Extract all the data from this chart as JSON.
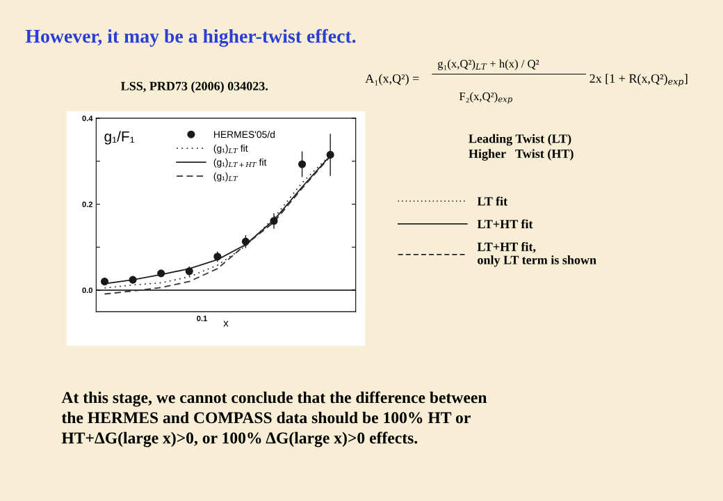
{
  "chart_data": {
    "type": "line",
    "title": "However, it may be a higher-twist effect.",
    "xlabel": "x",
    "categories": [
      null,
      null,
      null,
      null,
      null,
      null,
      null,
      null,
      null
    ],
    "ylim": [
      -0.05,
      0.4
    ],
    "yticks": [
      {
        "value": 0,
        "label": "0.0"
      },
      {
        "value": 0.1,
        "label": null
      },
      {
        "value": 0.2,
        "label": "0.2"
      },
      {
        "value": 0.3,
        "label": null
      },
      {
        "value": 0.4,
        "label": "0.4"
      }
    ],
    "grid": false,
    "legend": "top",
    "ref_lines": [
      {
        "axis": "y",
        "value": 0,
        "color": "#000000",
        "line_style": "solid"
      }
    ],
    "series": [
      {
        "name": "HERMES'05/d",
        "type": "scatter",
        "color": "#1a1a1a",
        "marker": "circle",
        "values": [
          0.02,
          0.024,
          0.039,
          0.044,
          0.078,
          0.113,
          0.161,
          0.293,
          0.315
        ],
        "errors": [
          0.005,
          0.006,
          0.008,
          0.011,
          0.012,
          0.015,
          0.018,
          0.03,
          0.049
        ]
      },
      {
        "name": "(g₁)$_{LT}$ fit",
        "color": "#333333",
        "line_style": "dotted",
        "values": [
          0.005,
          0.012,
          0.017,
          0.031,
          0.058,
          0.103,
          0.168,
          0.25,
          0.314
        ]
      },
      {
        "name": "(g₁)$_{LT+HT}$ fit",
        "color": "#222222",
        "line_style": "solid",
        "values": [
          0.015,
          0.024,
          0.036,
          0.05,
          0.071,
          0.106,
          0.163,
          0.24,
          0.313
        ]
      },
      {
        "name": "(g₁)$_{LT}$",
        "color": "#333333",
        "line_style": "dashed",
        "values": [
          -0.009,
          -0.002,
          0.006,
          0.02,
          0.05,
          0.106,
          0.158,
          0.237,
          0.311
        ]
      }
    ],
    "annotations": [
      "g₁/F₁",
      "LSS, PRD73 (2006) 034023.",
      "A₁(x,Q²) =",
      "g₁(x,Q²)$_{LT}$ + h(x) / Q²",
      "F₂(x,Q²)$_{exp}$",
      "2x [1 + R(x,Q²)$_{exp}$]",
      "Leading Twist (LT)",
      "Higher   Twist (HT)",
      "LT fit",
      "LT+HT fit",
      "LT+HT fit,\nonly LT term is shown",
      "At this stage, we cannot conclude that the difference between\nthe HERMES and COMPASS data should be 100% HT or\nHT+ΔG(large x)>0, or 100% ΔG(large x)>0 effects.",
      "0.1"
    ]
  }
}
